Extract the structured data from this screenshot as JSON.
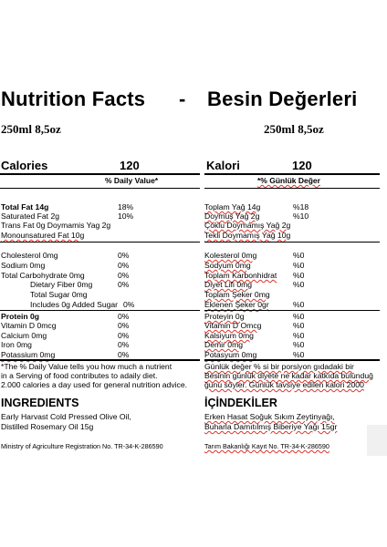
{
  "title_en": "Nutrition Facts",
  "title_dash": "-",
  "title_tr": "Besin Değerleri",
  "size_en": "250ml  8,5oz",
  "size_tr": "250ml  8,5oz",
  "calories_label_en": "Calories",
  "calories_value_en": "120",
  "calories_label_tr": "Kalori",
  "calories_value_tr": "120",
  "dv_header_en": "% Daily Value*",
  "dv_header_tr": "*% Günlük Değer",
  "rows_en": [
    {
      "label": "Total Fat 14g",
      "value": "18%"
    },
    {
      "label": "Saturated Fat 2g",
      "value": "10%"
    },
    {
      "label": "Trans Fat 0g Doymamis Yag 2g",
      "value": ""
    },
    {
      "label": "Monounsatured Fat 10g",
      "value": ""
    },
    {
      "label": "Cholesterol 0mg",
      "value": "0%"
    },
    {
      "label": "Sodium 0mg",
      "value": "0%"
    },
    {
      "label": "Total Carbohydrate 0mg",
      "value": "0%"
    },
    {
      "label": "Dietary Fiber 0mg",
      "value": "0%"
    },
    {
      "label": "Total Sugar 0mg",
      "value": ""
    },
    {
      "label": "Includes 0g Added Sugar",
      "value": "0%"
    },
    {
      "label": "Protein 0g",
      "value": "0%"
    },
    {
      "label": "Vitamin D 0mcg",
      "value": "0%"
    },
    {
      "label": "Calcium 0mg",
      "value": "0%"
    },
    {
      "label": "Iron 0mg",
      "value": "0%"
    },
    {
      "label": "Potassium 0mg",
      "value": "0%"
    }
  ],
  "rows_tr": [
    {
      "label": "Toplam Yağ 14g",
      "value": "%18"
    },
    {
      "label": "Doymuş Yağ 2g",
      "value": "%10"
    },
    {
      "label": "Çoklu Doymamış Yağ 2g",
      "value": ""
    },
    {
      "label": "Tekli Doymamış Yağ 10g",
      "value": ""
    },
    {
      "label": "Kolesterol 0mg",
      "value": "%0"
    },
    {
      "label": "Sodyum 0mg",
      "value": "%0"
    },
    {
      "label": "Toplam Karbonhidrat",
      "value": "%0"
    },
    {
      "label": "Diyet Lifi 0mg",
      "value": "%0"
    },
    {
      "label": "Toplam Şeker 0mg",
      "value": ""
    },
    {
      "label": "Eklenen Şeker 0gr",
      "value": "%0"
    },
    {
      "label": "Proteyin 0g",
      "value": "%0"
    },
    {
      "label": "Vitamin D Omcg",
      "value": "%0"
    },
    {
      "label": "Kalsiyum 0mg",
      "value": "%0"
    },
    {
      "label": "Demir 0mg",
      "value": "%0"
    },
    {
      "label": "Potasyum 0mg",
      "value": "%0"
    }
  ],
  "footnote_en_1": "*The % Daily Value tells you how much a nutrient",
  "footnote_en_2": "in a Serving of food contributes to adaily diet.",
  "footnote_en_3": "2.000 calories a day used for general nutrition advice.",
  "footnote_tr_1": "Günlük değer % si bir porsiyon gıdadaki bir",
  "footnote_tr_2": "Besinin günlük diyete ne kadar katkıda bulunduğ",
  "footnote_tr_3": "ğunu söyler. Günlük tavsiye edilen kalori 2000",
  "ingredients_title_en": "INGREDIENTS",
  "ingredients_en_1": "Early Harvast Cold Pressed Olive Oil,",
  "ingredients_en_2": "Distilled Rosemary Oil 15g",
  "ingredients_title_tr": "İÇİNDEKİLER",
  "ingredients_tr_1": "Erken Hasat Soğuk Sıkım Zeytinyağı,",
  "ingredients_tr_2": "Buharla Damıtılmış Biberiye Yağı 15gr",
  "registration_en": "Ministry of Agriculture Registration No. TR-34-K-286590",
  "registration_tr": "Tarım Bakanlığı Kayıt No. TR-34-K-286590"
}
